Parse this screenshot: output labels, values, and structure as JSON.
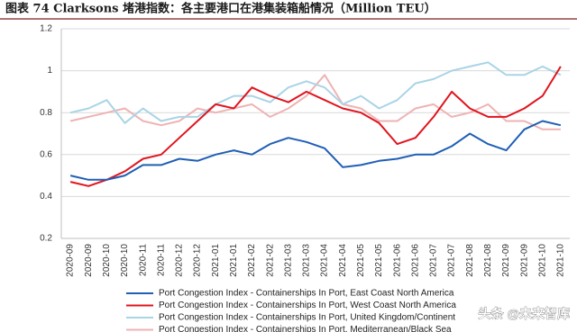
{
  "chart_data": {
    "type": "line",
    "title": "图表 74 Clarksons 堵港指数：各主要港口在港集装箱船情况（Million TEU）",
    "watermark": "头条 @未来智库",
    "categories": [
      "2020-09",
      "2020-09",
      "2020-10",
      "2020-10",
      "2020-11",
      "2020-11",
      "2020-12",
      "2020-12",
      "2021-01",
      "2021-01",
      "2021-02",
      "2021-02",
      "2021-03",
      "2021-03",
      "2021-04",
      "2021-04",
      "2021-05",
      "2021-05",
      "2021-06",
      "2021-06",
      "2021-07",
      "2021-07",
      "2021-08",
      "2021-08",
      "2021-09",
      "2021-09",
      "2021-10",
      "2021-10"
    ],
    "series": [
      {
        "name": "Port Congestion Index - Containerships In Port, East Coast North America",
        "color": "#1f5fb4",
        "values": [
          0.5,
          0.48,
          0.48,
          0.5,
          0.55,
          0.55,
          0.58,
          0.57,
          0.6,
          0.62,
          0.6,
          0.65,
          0.68,
          0.66,
          0.63,
          0.54,
          0.55,
          0.57,
          0.58,
          0.6,
          0.6,
          0.64,
          0.7,
          0.65,
          0.62,
          0.72,
          0.76,
          0.74
        ]
      },
      {
        "name": "Port Congestion Index - Containerships In Port, West Coast North America",
        "color": "#e0141e",
        "values": [
          0.47,
          0.45,
          0.48,
          0.52,
          0.58,
          0.6,
          0.68,
          0.76,
          0.84,
          0.82,
          0.92,
          0.88,
          0.85,
          0.9,
          0.86,
          0.82,
          0.8,
          0.75,
          0.65,
          0.68,
          0.78,
          0.9,
          0.82,
          0.78,
          0.78,
          0.82,
          0.88,
          1.02
        ]
      },
      {
        "name": "Port Congestion Index - Containerships In Port, United Kingdom/Continent",
        "color": "#a9d4e6",
        "values": [
          0.8,
          0.82,
          0.86,
          0.75,
          0.82,
          0.76,
          0.78,
          0.78,
          0.84,
          0.88,
          0.88,
          0.85,
          0.92,
          0.95,
          0.92,
          0.84,
          0.88,
          0.82,
          0.86,
          0.94,
          0.96,
          1.0,
          1.02,
          1.04,
          0.98,
          0.98,
          1.02,
          0.98
        ]
      },
      {
        "name": "Port Congestion Index - Containerships In Port, Mediterranean/Black Sea",
        "color": "#efb3b3",
        "values": [
          0.76,
          0.78,
          0.8,
          0.82,
          0.76,
          0.74,
          0.76,
          0.82,
          0.8,
          0.82,
          0.84,
          0.78,
          0.82,
          0.88,
          0.98,
          0.84,
          0.82,
          0.76,
          0.76,
          0.82,
          0.84,
          0.78,
          0.8,
          0.84,
          0.76,
          0.76,
          0.72,
          0.72
        ]
      }
    ],
    "ylim": [
      0.2,
      1.2
    ],
    "yticks": [
      0.2,
      0.4,
      0.6,
      0.8,
      1,
      1.2
    ],
    "grid": true
  }
}
